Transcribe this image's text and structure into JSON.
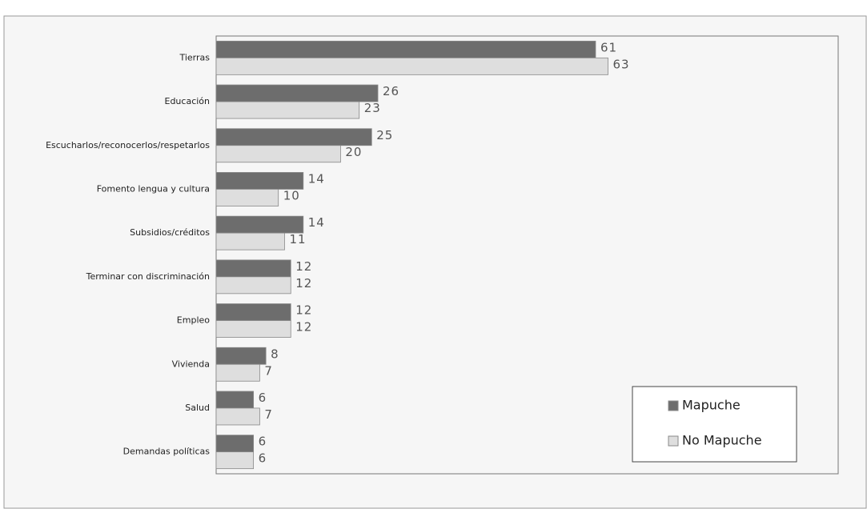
{
  "chart_data": {
    "type": "hbar",
    "categories": [
      "Tierras",
      "Educación",
      "Escucharlos/reconocerlos/respetarlos",
      "Fomento lengua y cultura",
      "Subsidios/créditos",
      "Terminar con discriminación",
      "Empleo",
      "Vivienda",
      "Salud",
      "Demandas políticas"
    ],
    "series": [
      {
        "name": "Mapuche",
        "color": "#6d6d6d",
        "values": [
          61,
          26,
          25,
          14,
          14,
          12,
          12,
          8,
          6,
          6
        ]
      },
      {
        "name": "No Mapuche",
        "color": "#dedede",
        "values": [
          63,
          23,
          20,
          10,
          11,
          12,
          12,
          7,
          7,
          6
        ]
      }
    ],
    "xlim": [
      0,
      100
    ],
    "legend": "bottom-right"
  }
}
